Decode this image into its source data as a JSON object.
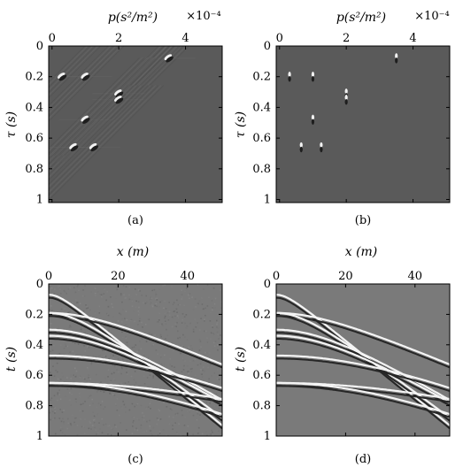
{
  "chart_data": [
    {
      "panel": "a",
      "type": "heatmap",
      "caption": "(a)",
      "x_label": "p(s²/m²)",
      "x_multiplier": "×10⁻⁴",
      "x_ticks": [
        "0",
        "2",
        "4"
      ],
      "x_tick_values": [
        0,
        2,
        4
      ],
      "xlim": [
        -0.1,
        5.1
      ],
      "y_label": "τ (s)",
      "y_ticks": [
        "0",
        "0.2",
        "0.4",
        "0.6",
        "0.8",
        "1"
      ],
      "y_tick_values": [
        0,
        0.2,
        0.4,
        0.6,
        0.8,
        1.0
      ],
      "ylim": [
        0,
        1.02
      ],
      "background": "#5a5a5a",
      "events": [
        {
          "p": 0.3,
          "tau": 0.2
        },
        {
          "p": 1.0,
          "tau": 0.2
        },
        {
          "p": 3.5,
          "tau": 0.08
        },
        {
          "p": 2.0,
          "tau": 0.31
        },
        {
          "p": 2.0,
          "tau": 0.35
        },
        {
          "p": 1.0,
          "tau": 0.48
        },
        {
          "p": 0.65,
          "tau": 0.66
        },
        {
          "p": 1.25,
          "tau": 0.66
        }
      ],
      "smearing": true
    },
    {
      "panel": "b",
      "type": "heatmap",
      "caption": "(b)",
      "x_label": "p(s²/m²)",
      "x_multiplier": "×10⁻⁴",
      "x_ticks": [
        "0",
        "2",
        "4"
      ],
      "x_tick_values": [
        0,
        2,
        4
      ],
      "xlim": [
        -0.1,
        5.1
      ],
      "y_label": "τ (s)",
      "y_ticks": [
        "0",
        "0.2",
        "0.4",
        "0.6",
        "0.8",
        "1"
      ],
      "y_tick_values": [
        0,
        0.2,
        0.4,
        0.6,
        0.8,
        1.0
      ],
      "ylim": [
        0,
        1.02
      ],
      "background": "#5a5a5a",
      "events": [
        {
          "p": 0.3,
          "tau": 0.2
        },
        {
          "p": 1.0,
          "tau": 0.2
        },
        {
          "p": 3.5,
          "tau": 0.08
        },
        {
          "p": 2.0,
          "tau": 0.31
        },
        {
          "p": 2.0,
          "tau": 0.35
        },
        {
          "p": 1.0,
          "tau": 0.48
        },
        {
          "p": 0.65,
          "tau": 0.66
        },
        {
          "p": 1.25,
          "tau": 0.66
        }
      ],
      "smearing": false
    },
    {
      "panel": "c",
      "type": "heatmap",
      "caption": "(c)",
      "x_label": "x (m)",
      "x_ticks": [
        "0",
        "20",
        "40"
      ],
      "x_tick_values": [
        0,
        20,
        40
      ],
      "xlim": [
        0,
        50
      ],
      "y_label": "t (s)",
      "y_ticks": [
        "0",
        "0.2",
        "0.4",
        "0.6",
        "0.8",
        "1"
      ],
      "y_tick_values": [
        0,
        0.2,
        0.4,
        0.6,
        0.8,
        1.0
      ],
      "ylim": [
        0,
        1.0
      ],
      "background": "#7a7a7a",
      "hyperbolas": [
        {
          "t0": 0.08,
          "slowness": 0.00035
        },
        {
          "t0": 0.2,
          "slowness": 0.0001
        },
        {
          "t0": 0.2,
          "slowness": 0.0003
        },
        {
          "t0": 0.31,
          "slowness": 0.0002
        },
        {
          "t0": 0.35,
          "slowness": 0.0002
        },
        {
          "t0": 0.48,
          "slowness": 0.0001
        },
        {
          "t0": 0.66,
          "slowness": 6e-05
        },
        {
          "t0": 0.66,
          "slowness": 0.000125
        }
      ],
      "noise": true
    },
    {
      "panel": "d",
      "type": "heatmap",
      "caption": "(d)",
      "x_label": "x (m)",
      "x_ticks": [
        "0",
        "20",
        "40"
      ],
      "x_tick_values": [
        0,
        20,
        40
      ],
      "xlim": [
        0,
        50
      ],
      "y_label": "t (s)",
      "y_ticks": [
        "0",
        "0.2",
        "0.4",
        "0.6",
        "0.8",
        "1"
      ],
      "y_tick_values": [
        0,
        0.2,
        0.4,
        0.6,
        0.8,
        1.0
      ],
      "ylim": [
        0,
        1.0
      ],
      "background": "#7a7a7a",
      "hyperbolas": [
        {
          "t0": 0.08,
          "slowness": 0.00035
        },
        {
          "t0": 0.2,
          "slowness": 0.0001
        },
        {
          "t0": 0.2,
          "slowness": 0.0003
        },
        {
          "t0": 0.31,
          "slowness": 0.0002
        },
        {
          "t0": 0.35,
          "slowness": 0.0002
        },
        {
          "t0": 0.48,
          "slowness": 0.0001
        },
        {
          "t0": 0.66,
          "slowness": 6e-05
        },
        {
          "t0": 0.66,
          "slowness": 0.000125
        }
      ],
      "noise": false
    }
  ]
}
